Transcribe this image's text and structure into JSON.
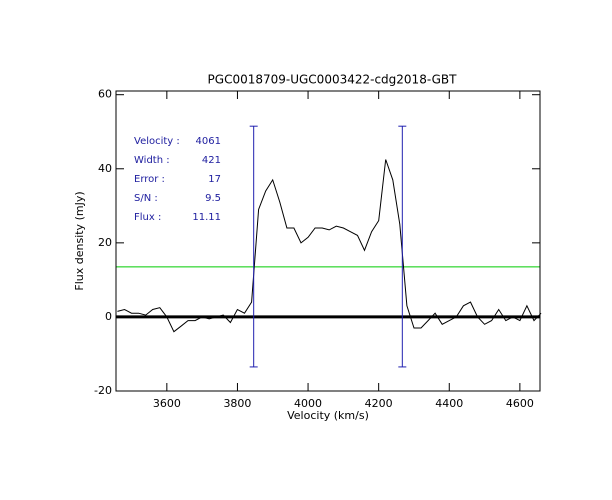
{
  "chart_data": {
    "type": "line",
    "title": "PGC0018709-UGC0003422-cdg2018-GBT",
    "x_label": "Velocity (km/s)",
    "y_label": "Flux density (mJy)",
    "xlim": [
      3456,
      4657
    ],
    "ylim": [
      -20,
      61
    ],
    "xticks": [
      3600,
      3800,
      4000,
      4200,
      4400,
      4600
    ],
    "yticks": [
      -20,
      0,
      20,
      40,
      60
    ],
    "color": "#000000",
    "x": [
      3460,
      3480,
      3500,
      3520,
      3540,
      3560,
      3580,
      3600,
      3620,
      3640,
      3660,
      3680,
      3700,
      3720,
      3740,
      3760,
      3780,
      3800,
      3820,
      3840,
      3860,
      3880,
      3900,
      3920,
      3940,
      3960,
      3980,
      4000,
      4020,
      4040,
      4060,
      4080,
      4100,
      4120,
      4140,
      4160,
      4180,
      4200,
      4220,
      4240,
      4260,
      4280,
      4300,
      4320,
      4340,
      4360,
      4380,
      4400,
      4420,
      4440,
      4460,
      4480,
      4500,
      4520,
      4540,
      4560,
      4580,
      4600,
      4620,
      4640,
      4660
    ],
    "values": [
      1.5,
      2,
      1,
      1,
      0.5,
      2,
      2.5,
      0,
      -4,
      -2.5,
      -1,
      -1,
      0,
      -0.5,
      0,
      0.5,
      -1.5,
      2,
      1,
      4,
      29,
      34,
      37,
      31,
      24,
      24,
      20,
      21.5,
      24,
      24,
      23.5,
      24.5,
      24,
      23,
      22,
      18,
      23,
      26,
      42.5,
      37,
      25,
      3,
      -3,
      -3,
      -1,
      1,
      -2,
      -1,
      0,
      3,
      4,
      0,
      -2,
      -1,
      2,
      -1,
      0,
      -1,
      3,
      -1,
      1
    ],
    "baseline": 0,
    "baseline_color": "#000000",
    "vlines": [
      3846,
      4267
    ],
    "vline_range": [
      -13.5,
      51.5
    ],
    "vline_color": "#2020b0",
    "hline": 13.5,
    "hline_color": "#00cc00",
    "annotation_color": "#2020a0",
    "annotations": [
      {
        "label": "Velocity :",
        "value": 4061
      },
      {
        "label": "Width :",
        "value": 421
      },
      {
        "label": "Error :",
        "value": 17
      },
      {
        "label": "S/N :",
        "value": 9.5
      },
      {
        "label": "Flux :",
        "value": 11.11
      }
    ]
  }
}
